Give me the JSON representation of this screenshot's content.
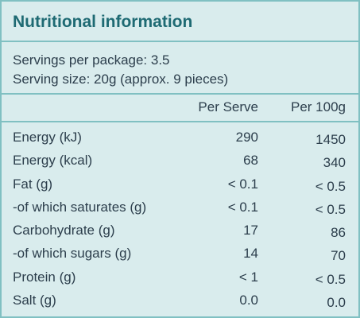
{
  "title": "Nutritional information",
  "servings_per_package": "Servings per package: 3.5",
  "serving_size": "Serving size: 20g (approx. 9 pieces)",
  "columns": {
    "per_serve": "Per Serve",
    "per_100g": "Per 100g"
  },
  "rows": [
    {
      "label": "Energy (kJ)",
      "per_serve": "290",
      "per_100g": "1450"
    },
    {
      "label": "Energy (kcal)",
      "per_serve": "68",
      "per_100g": "340"
    },
    {
      "label": "Fat (g)",
      "per_serve": "< 0.1",
      "per_100g": "< 0.5"
    },
    {
      "label": "-of which saturates (g)",
      "per_serve": "< 0.1",
      "per_100g": "< 0.5"
    },
    {
      "label": "Carbohydrate (g)",
      "per_serve": "17",
      "per_100g": "86"
    },
    {
      "label": "-of which sugars (g)",
      "per_serve": "14",
      "per_100g": "70"
    },
    {
      "label": "Protein (g)",
      "per_serve": "< 1",
      "per_100g": "< 0.5"
    },
    {
      "label": "Salt (g)",
      "per_serve": "0.0",
      "per_100g": "0.0"
    }
  ]
}
